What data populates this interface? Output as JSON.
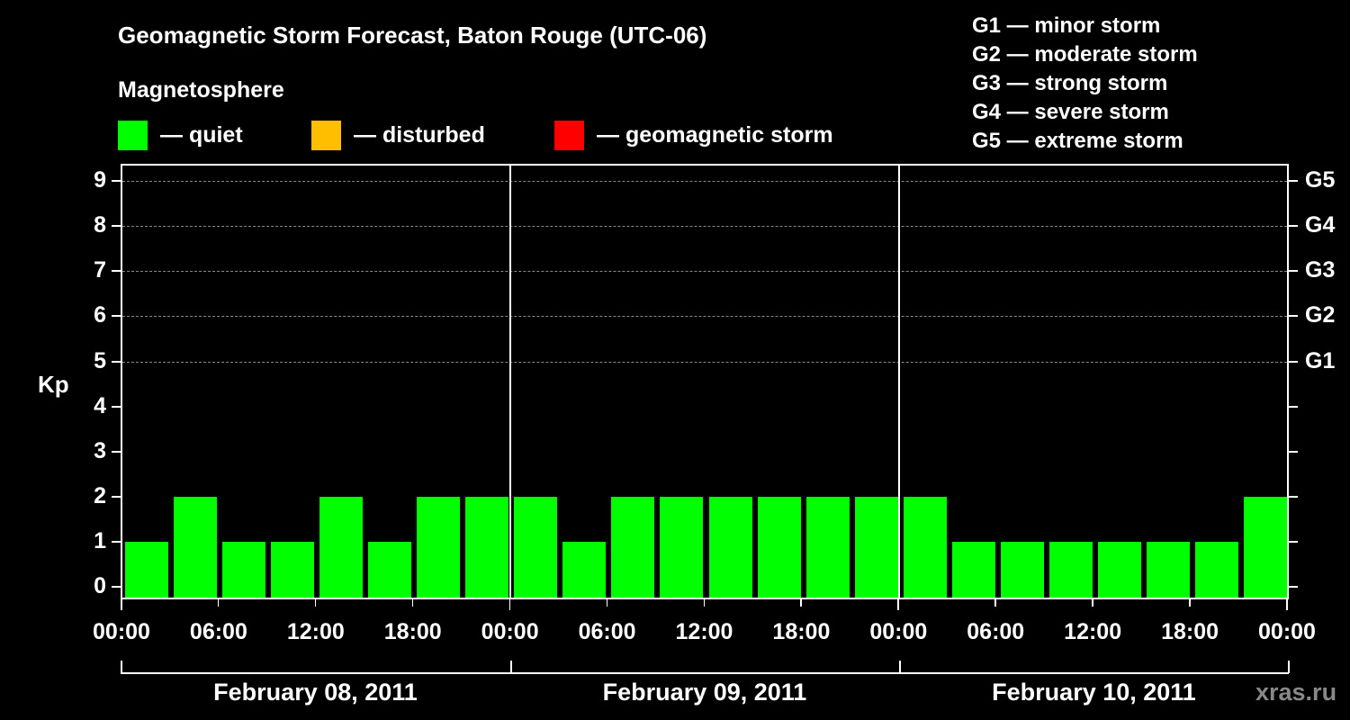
{
  "chart_data": {
    "type": "bar",
    "title": "Geomagnetic Storm Forecast, Baton Rouge (UTC-06)",
    "subtitle": "Magnetosphere",
    "xlabel": "",
    "ylabel": "Kp",
    "ylim": [
      0,
      9
    ],
    "yticks": [
      "0",
      "1",
      "2",
      "3",
      "4",
      "5",
      "6",
      "7",
      "8",
      "9"
    ],
    "right_axis_ticks": [
      {
        "kp": 5,
        "label": "G1"
      },
      {
        "kp": 6,
        "label": "G2"
      },
      {
        "kp": 7,
        "label": "G3"
      },
      {
        "kp": 8,
        "label": "G4"
      },
      {
        "kp": 9,
        "label": "G5"
      }
    ],
    "grid": "dashed horizontal at Kp 5-9",
    "xtick_labels": [
      "00:00",
      "06:00",
      "12:00",
      "18:00",
      "00:00",
      "06:00",
      "12:00",
      "18:00",
      "00:00",
      "06:00",
      "12:00",
      "18:00",
      "00:00"
    ],
    "days": [
      "February 08, 2011",
      "February 09, 2011",
      "February 10, 2011"
    ],
    "interval_hours": 3,
    "series": [
      {
        "name": "Kp",
        "values": [
          1,
          2,
          1,
          1,
          2,
          1,
          2,
          2,
          2,
          1,
          2,
          2,
          2,
          2,
          2,
          2,
          2,
          1,
          1,
          1,
          1,
          1,
          1,
          2
        ]
      }
    ],
    "bar_colors": {
      "quiet": "#00ff00",
      "disturbed": "#ffbf00",
      "storm": "#ff0000"
    },
    "legend": [
      {
        "label": "— quiet",
        "color": "#00ff00"
      },
      {
        "label": "— disturbed",
        "color": "#ffbf00"
      },
      {
        "label": "— geomagnetic storm",
        "color": "#ff0000"
      }
    ],
    "storm_scale": [
      "G1 — minor storm",
      "G2 — moderate storm",
      "G3 — strong storm",
      "G4 — severe storm",
      "G5 — extreme storm"
    ],
    "legend_position": "top"
  },
  "watermark": "xras.ru"
}
